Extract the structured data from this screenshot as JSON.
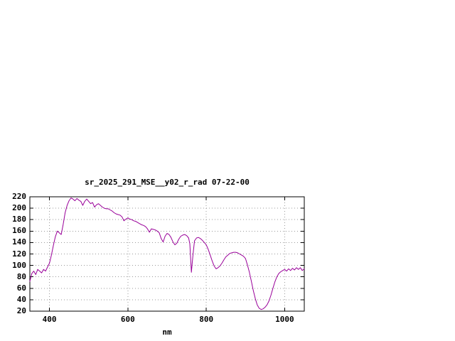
{
  "window": {
    "background": "#ffffff"
  },
  "chart_data": {
    "type": "line",
    "title": "sr_2025_291_MSE__y02_r_rad 07-22-00",
    "xlabel": "nm",
    "ylabel": "",
    "xlim": [
      350,
      1050
    ],
    "ylim": [
      20,
      220
    ],
    "xticks": [
      400,
      600,
      800,
      1000
    ],
    "yticks": [
      20,
      40,
      60,
      80,
      100,
      120,
      140,
      160,
      180,
      200,
      220
    ],
    "grid": true,
    "legend": "none",
    "line_color": "#990099",
    "axis_color": "#000000",
    "grid_color": "#999999",
    "series": [
      {
        "name": "sr_2025_291_MSE__y02_r_rad",
        "points": [
          [
            350,
            72
          ],
          [
            355,
            86
          ],
          [
            360,
            90
          ],
          [
            365,
            84
          ],
          [
            370,
            93
          ],
          [
            375,
            90
          ],
          [
            380,
            87
          ],
          [
            385,
            93
          ],
          [
            390,
            90
          ],
          [
            395,
            97
          ],
          [
            400,
            104
          ],
          [
            405,
            118
          ],
          [
            410,
            135
          ],
          [
            415,
            150
          ],
          [
            420,
            160
          ],
          [
            425,
            157
          ],
          [
            430,
            154
          ],
          [
            435,
            172
          ],
          [
            440,
            192
          ],
          [
            445,
            205
          ],
          [
            450,
            213
          ],
          [
            455,
            218
          ],
          [
            460,
            216
          ],
          [
            465,
            213
          ],
          [
            470,
            217
          ],
          [
            475,
            214
          ],
          [
            480,
            212
          ],
          [
            485,
            205
          ],
          [
            490,
            212
          ],
          [
            495,
            216
          ],
          [
            500,
            212
          ],
          [
            505,
            208
          ],
          [
            510,
            210
          ],
          [
            515,
            202
          ],
          [
            520,
            206
          ],
          [
            525,
            208
          ],
          [
            530,
            205
          ],
          [
            535,
            202
          ],
          [
            540,
            200
          ],
          [
            545,
            199
          ],
          [
            550,
            199
          ],
          [
            555,
            197
          ],
          [
            560,
            195
          ],
          [
            565,
            192
          ],
          [
            570,
            190
          ],
          [
            575,
            189
          ],
          [
            580,
            188
          ],
          [
            585,
            185
          ],
          [
            590,
            178
          ],
          [
            595,
            181
          ],
          [
            600,
            183
          ],
          [
            605,
            181
          ],
          [
            610,
            180
          ],
          [
            615,
            178
          ],
          [
            620,
            177
          ],
          [
            625,
            175
          ],
          [
            630,
            173
          ],
          [
            635,
            171
          ],
          [
            640,
            170
          ],
          [
            645,
            168
          ],
          [
            650,
            164
          ],
          [
            655,
            158
          ],
          [
            660,
            164
          ],
          [
            665,
            163
          ],
          [
            670,
            162
          ],
          [
            675,
            160
          ],
          [
            680,
            157
          ],
          [
            685,
            147
          ],
          [
            690,
            141
          ],
          [
            695,
            151
          ],
          [
            700,
            156
          ],
          [
            705,
            154
          ],
          [
            710,
            149
          ],
          [
            715,
            141
          ],
          [
            720,
            136
          ],
          [
            725,
            139
          ],
          [
            730,
            146
          ],
          [
            735,
            151
          ],
          [
            740,
            153
          ],
          [
            745,
            154
          ],
          [
            750,
            152
          ],
          [
            755,
            148
          ],
          [
            758,
            138
          ],
          [
            762,
            88
          ],
          [
            766,
            118
          ],
          [
            770,
            143
          ],
          [
            775,
            148
          ],
          [
            780,
            149
          ],
          [
            785,
            147
          ],
          [
            790,
            144
          ],
          [
            795,
            140
          ],
          [
            800,
            136
          ],
          [
            805,
            128
          ],
          [
            810,
            118
          ],
          [
            815,
            108
          ],
          [
            820,
            99
          ],
          [
            825,
            94
          ],
          [
            830,
            96
          ],
          [
            835,
            99
          ],
          [
            840,
            104
          ],
          [
            845,
            110
          ],
          [
            850,
            115
          ],
          [
            855,
            118
          ],
          [
            860,
            121
          ],
          [
            865,
            122
          ],
          [
            870,
            123
          ],
          [
            875,
            123
          ],
          [
            880,
            122
          ],
          [
            885,
            120
          ],
          [
            890,
            118
          ],
          [
            895,
            116
          ],
          [
            900,
            112
          ],
          [
            905,
            101
          ],
          [
            910,
            88
          ],
          [
            915,
            72
          ],
          [
            920,
            56
          ],
          [
            925,
            42
          ],
          [
            930,
            31
          ],
          [
            935,
            25
          ],
          [
            940,
            23
          ],
          [
            945,
            24
          ],
          [
            950,
            27
          ],
          [
            955,
            31
          ],
          [
            960,
            38
          ],
          [
            965,
            48
          ],
          [
            970,
            60
          ],
          [
            975,
            71
          ],
          [
            980,
            80
          ],
          [
            985,
            86
          ],
          [
            990,
            89
          ],
          [
            995,
            91
          ],
          [
            1000,
            93
          ],
          [
            1005,
            90
          ],
          [
            1010,
            94
          ],
          [
            1015,
            91
          ],
          [
            1020,
            95
          ],
          [
            1025,
            92
          ],
          [
            1030,
            96
          ],
          [
            1035,
            93
          ],
          [
            1040,
            96
          ],
          [
            1045,
            91
          ],
          [
            1050,
            94
          ]
        ]
      }
    ]
  }
}
